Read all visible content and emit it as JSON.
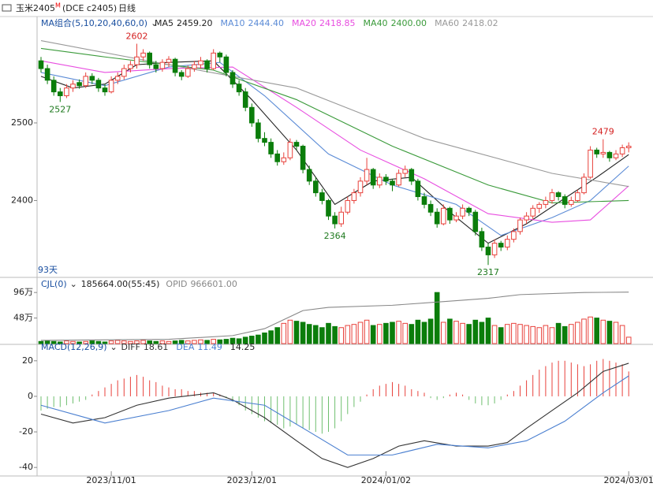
{
  "header": {
    "symbol": "玉米2405",
    "flag": "M",
    "code": "(DCE c2405)",
    "period": "日线",
    "days": "93天"
  },
  "chart_data": [
    {
      "type": "candlestick",
      "legend_title": "MA组合(5,10,20,40,60,0)",
      "candles": [
        [
          2580,
          2585,
          2565,
          2570
        ],
        [
          2570,
          2575,
          2550,
          2555
        ],
        [
          2555,
          2560,
          2535,
          2540
        ],
        [
          2540,
          2545,
          2527,
          2535
        ],
        [
          2535,
          2550,
          2532,
          2545
        ],
        [
          2545,
          2555,
          2540,
          2550
        ],
        [
          2552,
          2556,
          2544,
          2548
        ],
        [
          2548,
          2565,
          2545,
          2560
        ],
        [
          2560,
          2564,
          2550,
          2555
        ],
        [
          2555,
          2558,
          2540,
          2545
        ],
        [
          2545,
          2550,
          2535,
          2540
        ],
        [
          2540,
          2560,
          2538,
          2555
        ],
        [
          2555,
          2565,
          2550,
          2560
        ],
        [
          2560,
          2575,
          2556,
          2570
        ],
        [
          2570,
          2580,
          2565,
          2575
        ],
        [
          2575,
          2602,
          2570,
          2585
        ],
        [
          2585,
          2595,
          2580,
          2590
        ],
        [
          2590,
          2592,
          2570,
          2575
        ],
        [
          2575,
          2580,
          2565,
          2570
        ],
        [
          2570,
          2582,
          2566,
          2578
        ],
        [
          2578,
          2586,
          2572,
          2582
        ],
        [
          2582,
          2584,
          2560,
          2565
        ],
        [
          2565,
          2568,
          2555,
          2560
        ],
        [
          2560,
          2574,
          2558,
          2570
        ],
        [
          2570,
          2580,
          2566,
          2575
        ],
        [
          2575,
          2585,
          2570,
          2580
        ],
        [
          2580,
          2582,
          2565,
          2570
        ],
        [
          2570,
          2595,
          2568,
          2590
        ],
        [
          2590,
          2592,
          2578,
          2585
        ],
        [
          2585,
          2588,
          2560,
          2565
        ],
        [
          2565,
          2568,
          2545,
          2550
        ],
        [
          2550,
          2555,
          2535,
          2540
        ],
        [
          2540,
          2545,
          2515,
          2520
        ],
        [
          2520,
          2525,
          2495,
          2500
        ],
        [
          2500,
          2505,
          2475,
          2480
        ],
        [
          2480,
          2488,
          2470,
          2475
        ],
        [
          2475,
          2480,
          2455,
          2460
        ],
        [
          2460,
          2465,
          2445,
          2450
        ],
        [
          2450,
          2462,
          2446,
          2455
        ],
        [
          2455,
          2480,
          2452,
          2475
        ],
        [
          2475,
          2478,
          2465,
          2470
        ],
        [
          2470,
          2472,
          2435,
          2440
        ],
        [
          2440,
          2445,
          2420,
          2425
        ],
        [
          2425,
          2430,
          2405,
          2410
        ],
        [
          2410,
          2415,
          2395,
          2400
        ],
        [
          2400,
          2402,
          2375,
          2380
        ],
        [
          2380,
          2385,
          2364,
          2370
        ],
        [
          2370,
          2392,
          2366,
          2385
        ],
        [
          2385,
          2405,
          2382,
          2400
        ],
        [
          2400,
          2415,
          2396,
          2410
        ],
        [
          2410,
          2430,
          2405,
          2425
        ],
        [
          2425,
          2455,
          2420,
          2440
        ],
        [
          2440,
          2442,
          2415,
          2420
        ],
        [
          2420,
          2435,
          2416,
          2430
        ],
        [
          2430,
          2434,
          2420,
          2425
        ],
        [
          2425,
          2428,
          2412,
          2420
        ],
        [
          2420,
          2440,
          2418,
          2435
        ],
        [
          2435,
          2445,
          2430,
          2440
        ],
        [
          2440,
          2442,
          2420,
          2425
        ],
        [
          2425,
          2428,
          2400,
          2405
        ],
        [
          2405,
          2410,
          2390,
          2395
        ],
        [
          2395,
          2400,
          2380,
          2385
        ],
        [
          2385,
          2390,
          2365,
          2370
        ],
        [
          2370,
          2395,
          2368,
          2390
        ],
        [
          2390,
          2392,
          2370,
          2375
        ],
        [
          2375,
          2385,
          2372,
          2380
        ],
        [
          2380,
          2395,
          2376,
          2390
        ],
        [
          2390,
          2392,
          2380,
          2385
        ],
        [
          2385,
          2388,
          2355,
          2360
        ],
        [
          2360,
          2365,
          2335,
          2340
        ],
        [
          2340,
          2345,
          2317,
          2330
        ],
        [
          2330,
          2350,
          2326,
          2345
        ],
        [
          2345,
          2348,
          2335,
          2340
        ],
        [
          2340,
          2355,
          2336,
          2350
        ],
        [
          2350,
          2364,
          2346,
          2360
        ],
        [
          2360,
          2378,
          2356,
          2375
        ],
        [
          2375,
          2385,
          2370,
          2380
        ],
        [
          2380,
          2394,
          2376,
          2390
        ],
        [
          2390,
          2398,
          2384,
          2395
        ],
        [
          2395,
          2405,
          2390,
          2400
        ],
        [
          2400,
          2415,
          2396,
          2410
        ],
        [
          2410,
          2412,
          2400,
          2405
        ],
        [
          2405,
          2408,
          2390,
          2395
        ],
        [
          2395,
          2405,
          2392,
          2400
        ],
        [
          2400,
          2414,
          2398,
          2410
        ],
        [
          2410,
          2435,
          2408,
          2430
        ],
        [
          2430,
          2470,
          2428,
          2465
        ],
        [
          2465,
          2468,
          2455,
          2460
        ],
        [
          2460,
          2479,
          2455,
          2462
        ],
        [
          2462,
          2464,
          2450,
          2455
        ],
        [
          2455,
          2465,
          2452,
          2460
        ],
        [
          2460,
          2472,
          2456,
          2468
        ],
        [
          2468,
          2475,
          2462,
          2470
        ]
      ],
      "up_color": "#e8413b",
      "down_color": "#0b7d0b",
      "ylim": [
        2303,
        2634
      ],
      "yticks": [
        2400,
        2500
      ],
      "annotations": [
        {
          "x": 15,
          "value": 2602,
          "color": "#d42020"
        },
        {
          "x": 3,
          "value": 2527,
          "color": "#1f7a1f"
        },
        {
          "x": 46,
          "value": 2364,
          "color": "#1f7a1f"
        },
        {
          "x": 70,
          "value": 2317,
          "color": "#1f7a1f"
        },
        {
          "x": 88,
          "value": 2479,
          "color": "#d42020"
        }
      ],
      "series": [
        {
          "name": "MA5",
          "label": "2459.20",
          "color": "#222222",
          "x": [
            0,
            5,
            10,
            15,
            20,
            27,
            33,
            40,
            46,
            52,
            58,
            64,
            70,
            76,
            82,
            87,
            92
          ],
          "values": [
            2560,
            2545,
            2550,
            2575,
            2578,
            2580,
            2530,
            2465,
            2395,
            2425,
            2430,
            2385,
            2345,
            2370,
            2403,
            2430,
            2459.2
          ]
        },
        {
          "name": "MA10",
          "label": "2444.40",
          "color": "#5b8bd6",
          "x": [
            0,
            10,
            20,
            28,
            35,
            45,
            55,
            65,
            72,
            80,
            86,
            92
          ],
          "values": [
            2565,
            2548,
            2572,
            2578,
            2535,
            2460,
            2420,
            2395,
            2355,
            2378,
            2400,
            2444.4
          ]
        },
        {
          "name": "MA20",
          "label": "2418.85",
          "color": "#e84de0",
          "x": [
            0,
            10,
            20,
            30,
            40,
            50,
            60,
            70,
            80,
            86,
            92
          ],
          "values": [
            2580,
            2565,
            2570,
            2572,
            2520,
            2465,
            2428,
            2383,
            2372,
            2375,
            2418.85
          ]
        },
        {
          "name": "MA40",
          "label": "2400.00",
          "color": "#3a9a3a",
          "x": [
            0,
            10,
            27,
            40,
            55,
            70,
            80,
            92
          ],
          "values": [
            2596,
            2585,
            2568,
            2530,
            2470,
            2420,
            2397,
            2400
          ]
        },
        {
          "name": "MA60",
          "label": "2418.02",
          "color": "#999999",
          "x": [
            0,
            20,
            40,
            60,
            80,
            92
          ],
          "values": [
            2606,
            2575,
            2545,
            2480,
            2435,
            2418.02
          ]
        }
      ]
    },
    {
      "type": "volume",
      "title": "CJL(0)",
      "info": "185664.00(55:45)",
      "ylim": [
        0,
        117
      ],
      "yticks": [
        {
          "value": 48,
          "label": "48万"
        },
        {
          "value": 96,
          "label": "96万"
        }
      ],
      "values": [
        4,
        5,
        4,
        3,
        5,
        4,
        3,
        4,
        5,
        4,
        3,
        5,
        6,
        5,
        4,
        5,
        6,
        5,
        4,
        5,
        4,
        5,
        6,
        5,
        6,
        7,
        6,
        8,
        7,
        8,
        10,
        9,
        12,
        14,
        16,
        20,
        24,
        30,
        38,
        44,
        42,
        40,
        36,
        34,
        30,
        38,
        32,
        30,
        34,
        36,
        40,
        44,
        34,
        36,
        38,
        40,
        42,
        38,
        36,
        44,
        40,
        46,
        96,
        40,
        46,
        42,
        38,
        36,
        44,
        40,
        48,
        34,
        30,
        36,
        38,
        36,
        34,
        32,
        30,
        34,
        30,
        38,
        32,
        36,
        40,
        46,
        50,
        48,
        44,
        42,
        40,
        34,
        12
      ],
      "series": [
        {
          "name": "OPID",
          "label": "966601.00",
          "color": "#888888",
          "x": [
            0,
            20,
            30,
            35,
            41,
            45,
            55,
            62,
            70,
            75,
            85,
            92
          ],
          "values": [
            6,
            8,
            15,
            28,
            62,
            68,
            72,
            78,
            85,
            92,
            96,
            96.66
          ]
        }
      ]
    },
    {
      "type": "macd",
      "title": "MACD(12,26,9)",
      "hist_label": "14.25",
      "up_color": "#e8413b",
      "down_color": "#6fbf6f",
      "ylim": [
        -44.8,
        27.9
      ],
      "yticks": [
        -40,
        -20,
        0,
        20
      ],
      "values": [
        -8,
        -7,
        -6,
        -6,
        -5,
        -4,
        -3,
        -2,
        1,
        3,
        5,
        7,
        9,
        10,
        11,
        12,
        11,
        9,
        8,
        6,
        5,
        4,
        4,
        3,
        3,
        2,
        2,
        2,
        1,
        -1,
        -3,
        -5,
        -8,
        -10,
        -12,
        -14,
        -15,
        -16,
        -18,
        -17,
        -16,
        -18,
        -19,
        -20,
        -21,
        -20,
        -18,
        -14,
        -10,
        -6,
        -3,
        1,
        4,
        6,
        7,
        8,
        7,
        6,
        4,
        3,
        2,
        -1,
        -2,
        -1,
        1,
        2,
        1,
        -2,
        -4,
        -5,
        -5,
        -4,
        -2,
        1,
        3,
        6,
        9,
        12,
        15,
        17,
        19,
        20,
        20,
        19,
        18,
        17,
        18,
        20,
        21,
        20,
        19,
        18,
        14
      ],
      "series": [
        {
          "name": "DIFF",
          "label": "18.61",
          "color": "#333333",
          "x": [
            0,
            5,
            10,
            15,
            20,
            27,
            30,
            35,
            40,
            44,
            48,
            52,
            56,
            60,
            65,
            70,
            73,
            76,
            80,
            84,
            88,
            92
          ],
          "values": [
            -10,
            -15,
            -12,
            -5,
            -1,
            2,
            -2,
            -12,
            -25,
            -35,
            -40,
            -35,
            -28,
            -25,
            -28,
            -28,
            -26,
            -18,
            -8,
            2,
            14,
            18.61
          ]
        },
        {
          "name": "DEA",
          "label": "11.49",
          "color": "#4a7fd0",
          "x": [
            0,
            10,
            20,
            27,
            35,
            42,
            48,
            55,
            62,
            70,
            76,
            82,
            88,
            92
          ],
          "values": [
            -5,
            -15,
            -8,
            -1,
            -5,
            -20,
            -33,
            -33,
            -27,
            -29,
            -25,
            -14,
            2,
            11.49
          ]
        }
      ],
      "xlabels": [
        {
          "x": 11,
          "label": "2023/11/01"
        },
        {
          "x": 33,
          "label": "2023/12/01"
        },
        {
          "x": 54,
          "label": "2024/01/02"
        },
        {
          "x": 92,
          "label": "2024/03/01"
        }
      ]
    }
  ]
}
